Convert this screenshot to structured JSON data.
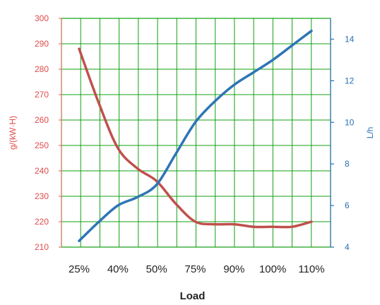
{
  "chart_data": {
    "type": "line",
    "categories": [
      "25%",
      "40%",
      "50%",
      "75%",
      "90%",
      "100%",
      "110%"
    ],
    "xlabel": "Load",
    "series": [
      {
        "axis": "left",
        "color": "#c0504d",
        "x": [
          0,
          0.5,
          1,
          1.5,
          2,
          2.5,
          3,
          3.5,
          4,
          4.5,
          5,
          5.5,
          6
        ],
        "values": [
          288,
          267,
          249,
          241,
          236,
          227,
          220,
          219,
          219,
          218,
          218,
          218,
          220
        ]
      },
      {
        "axis": "right",
        "color": "#2e75b6",
        "x": [
          0,
          0.5,
          1,
          1.5,
          2,
          2.5,
          3,
          3.5,
          4,
          4.5,
          5,
          5.5,
          6
        ],
        "values": [
          4.3,
          5.2,
          6.0,
          6.4,
          7.0,
          8.5,
          10.0,
          11.0,
          11.8,
          12.4,
          13.0,
          13.7,
          14.4
        ]
      }
    ],
    "y_left": {
      "label": "g/(kW·H)",
      "ylim": [
        210,
        300
      ],
      "ticks": [
        "210",
        "220",
        "230",
        "240",
        "250",
        "260",
        "270",
        "280",
        "290",
        "300"
      ]
    },
    "y_right": {
      "label": "L/h",
      "ylim": [
        4,
        15
      ],
      "ticks": [
        "4",
        "6",
        "8",
        "10",
        "12",
        "14"
      ]
    },
    "grid": true,
    "colors": {
      "grid": "#10a010",
      "left_axis": "#e04a4a",
      "right_axis": "#2a6fb5"
    }
  }
}
